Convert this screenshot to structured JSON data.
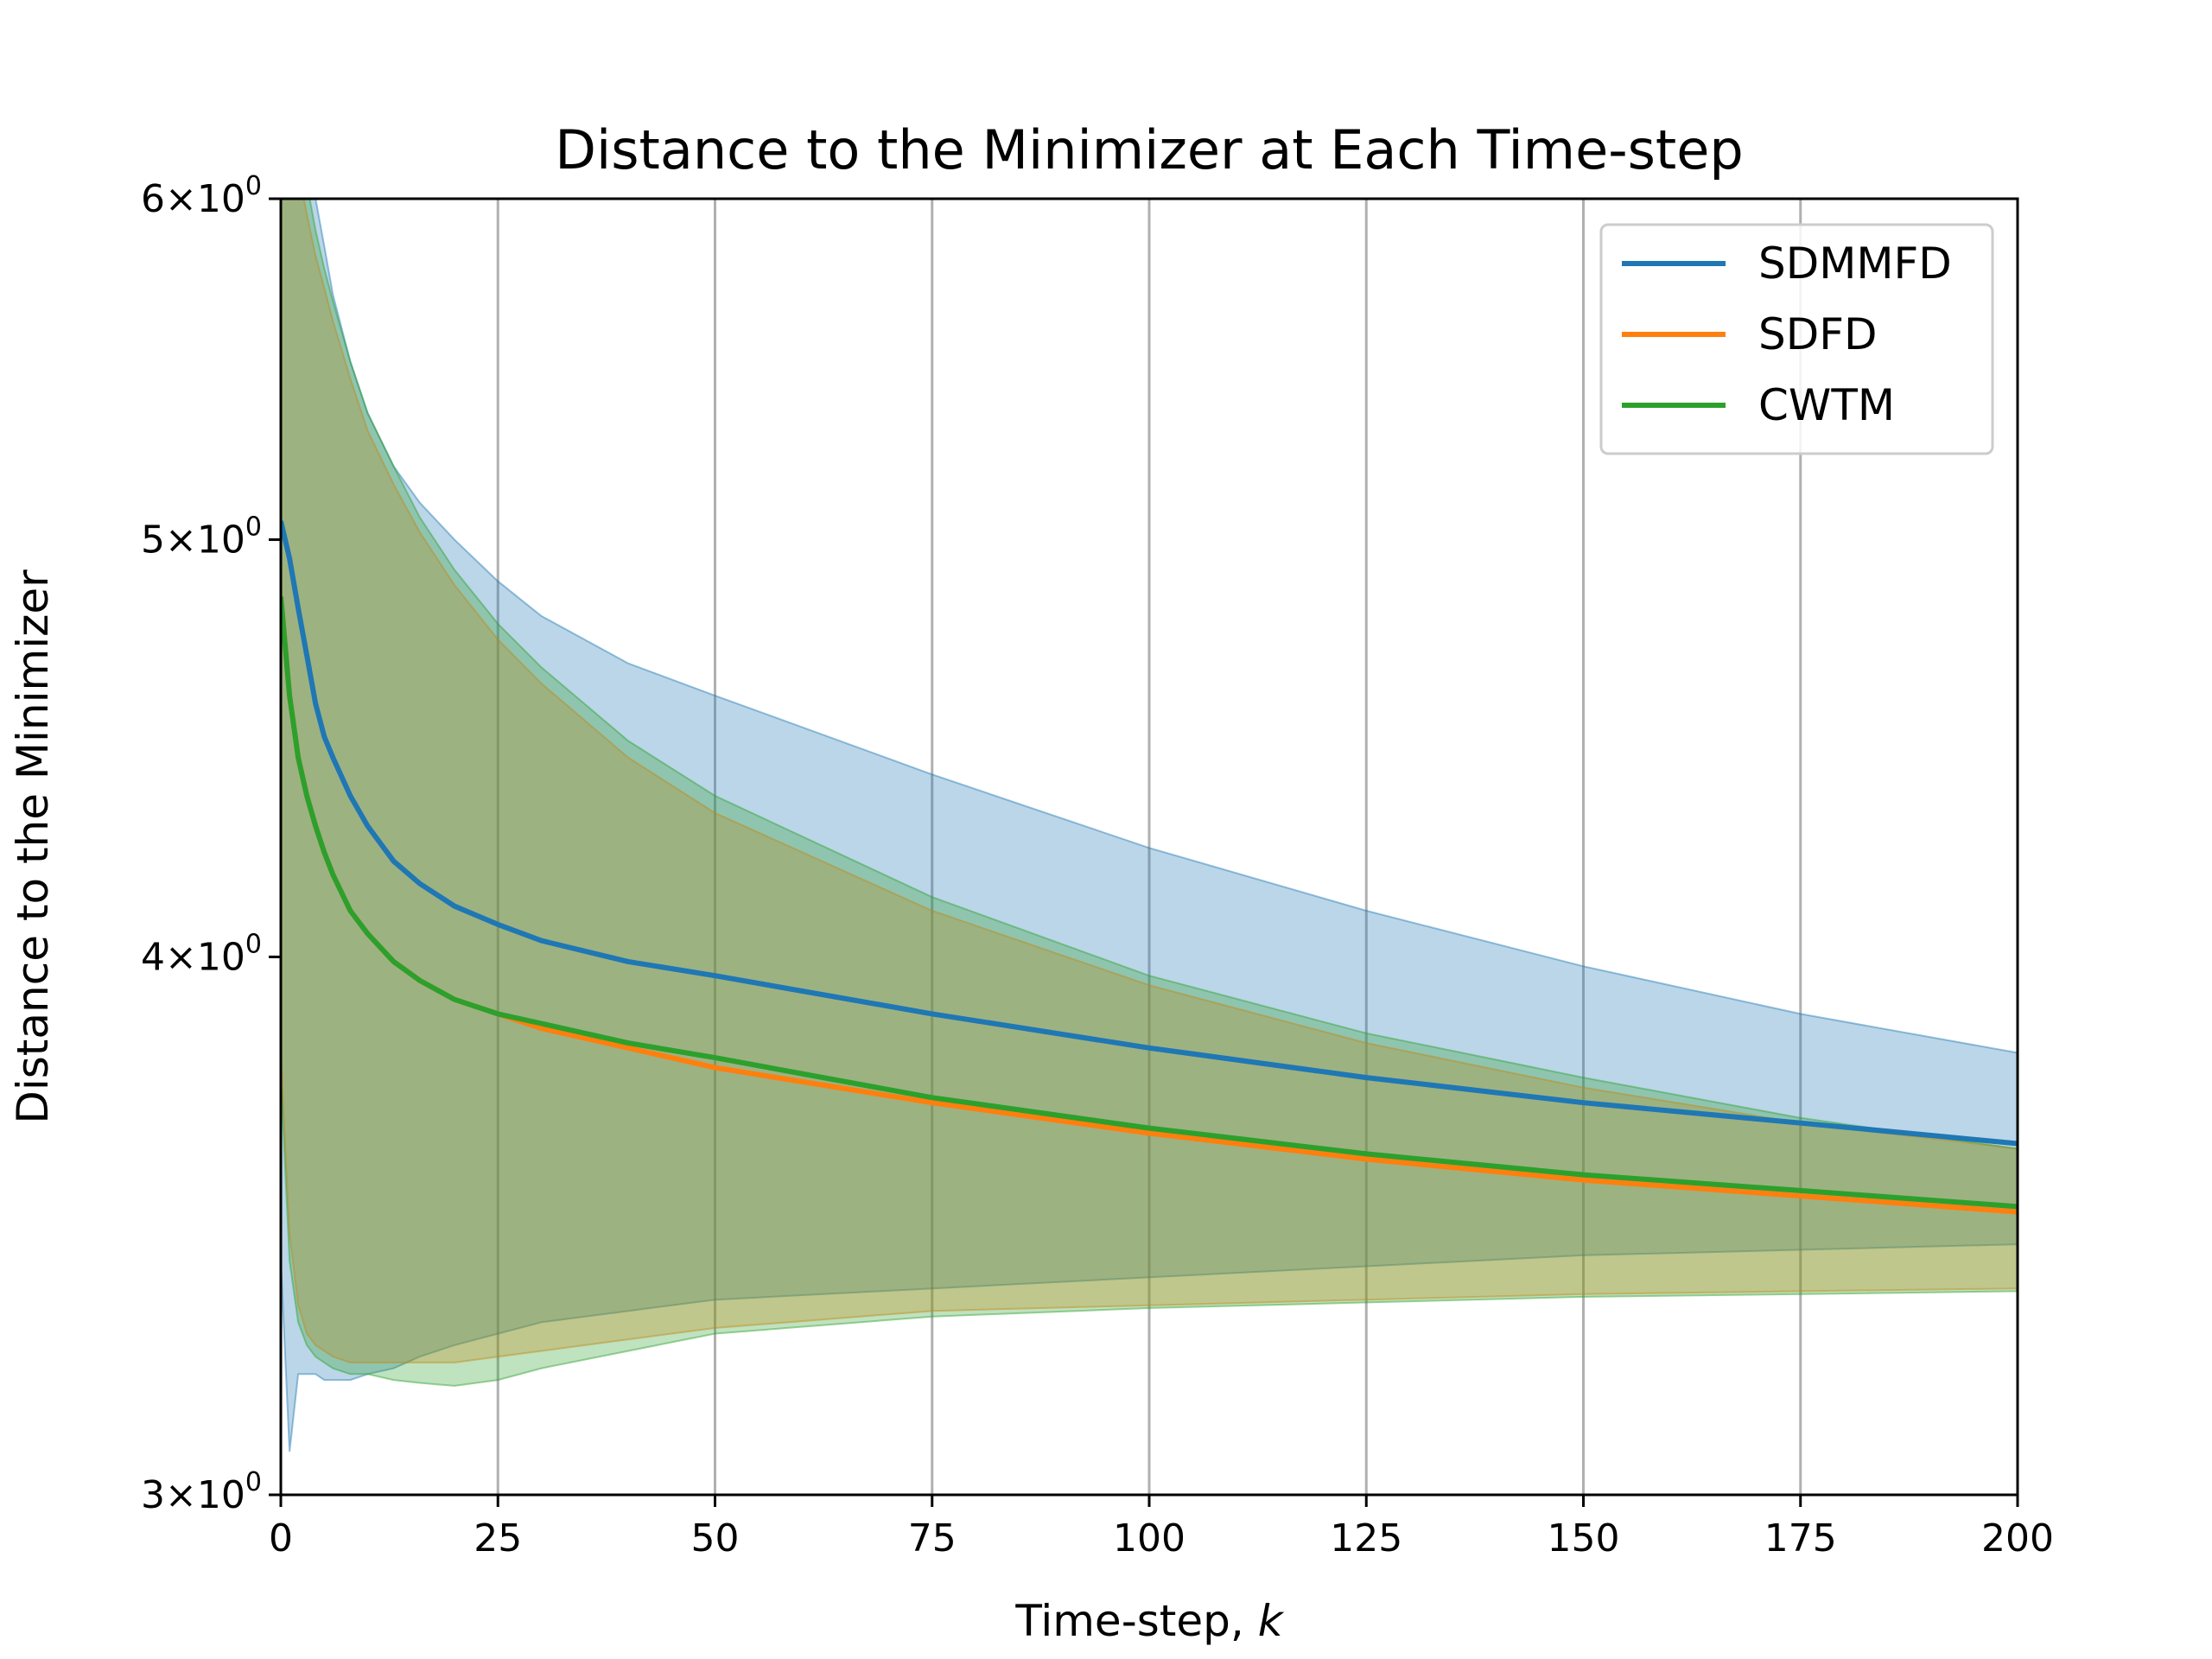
{
  "chart_data": {
    "type": "line",
    "title": "Distance to the Minimizer at Each Time-step",
    "xlabel": "Time-step, ",
    "xlabel_var": "k",
    "ylabel": "Distance to the Minimizer",
    "xlim": [
      0,
      200
    ],
    "ylim": [
      3,
      6
    ],
    "yscale": "log",
    "grid": "x-only",
    "legend_position": "top-right",
    "x_ticks": [
      0,
      25,
      50,
      75,
      100,
      125,
      150,
      175,
      200
    ],
    "y_ticks": [
      {
        "value": 3,
        "mant": "3",
        "exp": "0"
      },
      {
        "value": 4,
        "mant": "4",
        "exp": "0"
      },
      {
        "value": 5,
        "mant": "5",
        "exp": "0"
      },
      {
        "value": 6,
        "mant": "6",
        "exp": "0"
      }
    ],
    "series": [
      {
        "name": "SDMMFD",
        "color": "#1f77b4",
        "x": [
          0,
          1,
          2,
          3,
          4,
          5,
          6,
          8,
          10,
          13,
          16,
          20,
          25,
          30,
          40,
          50,
          75,
          100,
          125,
          150,
          175,
          200
        ],
        "y": [
          5.05,
          4.95,
          4.82,
          4.7,
          4.58,
          4.5,
          4.45,
          4.36,
          4.29,
          4.21,
          4.16,
          4.11,
          4.07,
          4.035,
          3.99,
          3.96,
          3.88,
          3.81,
          3.75,
          3.7,
          3.66,
          3.62
        ],
        "upper": [
          6.6,
          6.45,
          6.3,
          6.15,
          6.0,
          5.85,
          5.7,
          5.5,
          5.35,
          5.2,
          5.1,
          5.0,
          4.89,
          4.8,
          4.68,
          4.6,
          4.41,
          4.24,
          4.1,
          3.98,
          3.88,
          3.8
        ],
        "lower": [
          3.4,
          3.07,
          3.2,
          3.2,
          3.2,
          3.19,
          3.19,
          3.19,
          3.2,
          3.21,
          3.23,
          3.25,
          3.27,
          3.29,
          3.31,
          3.33,
          3.35,
          3.37,
          3.39,
          3.41,
          3.42,
          3.43
        ]
      },
      {
        "name": "SDFD",
        "color": "#ff7f0e",
        "x": [
          0,
          1,
          2,
          3,
          4,
          5,
          6,
          8,
          10,
          13,
          16,
          20,
          25,
          30,
          40,
          50,
          75,
          100,
          125,
          150,
          175,
          200
        ],
        "y": [
          4.85,
          4.6,
          4.45,
          4.36,
          4.29,
          4.23,
          4.18,
          4.1,
          4.05,
          3.99,
          3.95,
          3.91,
          3.88,
          3.85,
          3.81,
          3.77,
          3.7,
          3.64,
          3.59,
          3.55,
          3.52,
          3.49
        ],
        "upper": [
          6.5,
          6.3,
          6.1,
          5.95,
          5.82,
          5.72,
          5.62,
          5.45,
          5.3,
          5.15,
          5.02,
          4.88,
          4.74,
          4.63,
          4.45,
          4.32,
          4.1,
          3.94,
          3.82,
          3.73,
          3.66,
          3.61
        ],
        "lower": [
          3.8,
          3.45,
          3.32,
          3.27,
          3.25,
          3.24,
          3.23,
          3.22,
          3.22,
          3.22,
          3.22,
          3.22,
          3.23,
          3.24,
          3.26,
          3.28,
          3.31,
          3.32,
          3.33,
          3.34,
          3.345,
          3.35
        ]
      },
      {
        "name": "CWTM",
        "color": "#2ca02c",
        "x": [
          0,
          1,
          2,
          3,
          4,
          5,
          6,
          8,
          10,
          13,
          16,
          20,
          25,
          30,
          40,
          50,
          75,
          100,
          125,
          150,
          175,
          200
        ],
        "y": [
          4.85,
          4.6,
          4.45,
          4.36,
          4.29,
          4.23,
          4.18,
          4.1,
          4.05,
          3.99,
          3.95,
          3.91,
          3.88,
          3.86,
          3.82,
          3.79,
          3.71,
          3.65,
          3.6,
          3.56,
          3.53,
          3.5
        ],
        "upper": [
          6.6,
          6.4,
          6.2,
          6.05,
          5.9,
          5.78,
          5.68,
          5.5,
          5.35,
          5.2,
          5.06,
          4.92,
          4.78,
          4.67,
          4.49,
          4.36,
          4.13,
          3.96,
          3.84,
          3.75,
          3.67,
          3.61
        ],
        "lower": [
          3.75,
          3.4,
          3.29,
          3.25,
          3.23,
          3.22,
          3.21,
          3.2,
          3.2,
          3.19,
          3.185,
          3.18,
          3.19,
          3.21,
          3.24,
          3.27,
          3.3,
          3.315,
          3.325,
          3.335,
          3.34,
          3.345
        ]
      }
    ]
  }
}
